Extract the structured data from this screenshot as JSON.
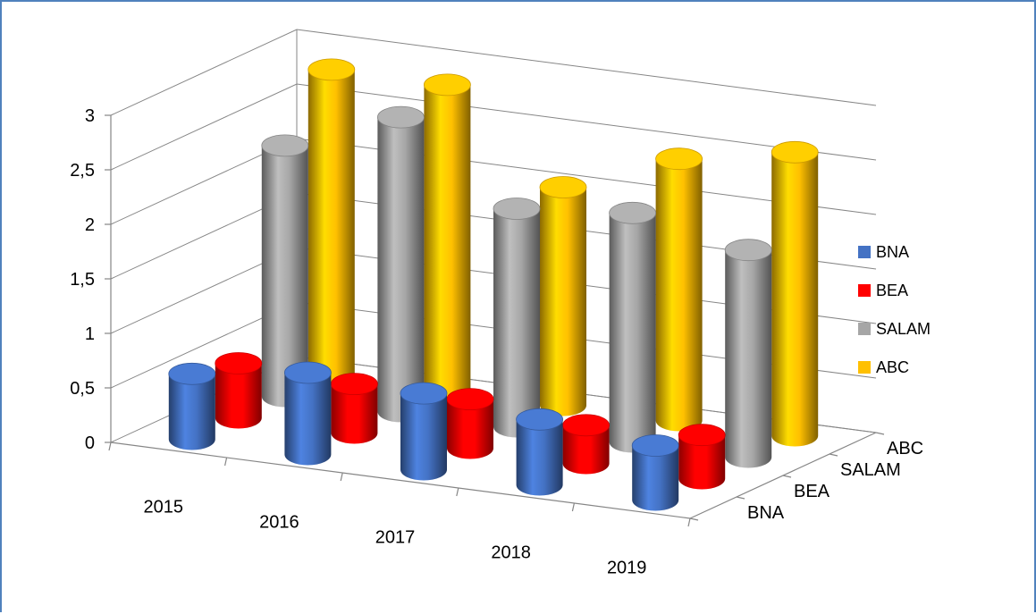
{
  "chart_data": {
    "type": "bar",
    "style": "3d-cylinder",
    "categories": [
      "2015",
      "2016",
      "2017",
      "2018",
      "2019"
    ],
    "series": [
      {
        "name": "BNA",
        "color": "#4472c4",
        "values": [
          0.6,
          0.75,
          0.7,
          0.6,
          0.5
        ]
      },
      {
        "name": "BEA",
        "color": "#ff0000",
        "values": [
          0.5,
          0.45,
          0.45,
          0.35,
          0.4
        ]
      },
      {
        "name": "SALAM",
        "color": "#a6a6a6",
        "values": [
          2.3,
          2.7,
          2.0,
          2.1,
          1.9
        ]
      },
      {
        "name": "ABC",
        "color": "#ffc000",
        "values": [
          2.8,
          2.8,
          2.0,
          2.4,
          2.6
        ]
      }
    ],
    "y_ticks": [
      "0",
      "0,5",
      "1",
      "1,5",
      "2",
      "2,5",
      "3"
    ],
    "depth_labels": [
      "BNA",
      "BEA",
      "SALAM",
      "ABC"
    ],
    "ylim": [
      0,
      3
    ],
    "legend_position": "right",
    "gridlines": true
  }
}
